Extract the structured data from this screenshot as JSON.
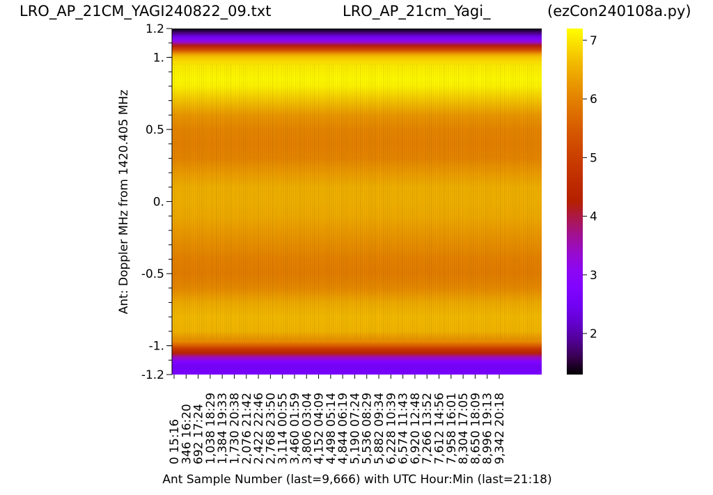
{
  "chart_data": {
    "type": "heatmap",
    "title_left": "LRO_AP_21CM_YAGI240822_09.txt",
    "title_center": "LRO_AP_21cm_Yagi_",
    "title_right": "(ezCon240108a.py)",
    "xlabel": "Ant Sample Number (last=9,666) with UTC Hour:Min (last=21:18)",
    "ylabel": "Ant:  Doppler MHz from 1420.405 MHz",
    "y_tick_labels": [
      "1.2",
      "1.",
      "0.5",
      "0.",
      "-0.5",
      "-1.",
      "-1.2"
    ],
    "y_tick_values": [
      1.2,
      1.0,
      0.5,
      0.0,
      -0.5,
      -1.0,
      -1.2
    ],
    "ylim": [
      -1.2,
      1.2
    ],
    "x_sample_labels": [
      "0",
      "346",
      "692",
      "1,038",
      "1,384",
      "1,730",
      "2,076",
      "2,422",
      "2,768",
      "3,114",
      "3,460",
      "3,806",
      "4,152",
      "4,498",
      "4,844",
      "5,190",
      "5,536",
      "5,882",
      "6,228",
      "6,574",
      "6,920",
      "7,266",
      "7,612",
      "7,958",
      "8,304",
      "8,650",
      "8,996",
      "9,342"
    ],
    "x_time_labels": [
      "15:16",
      "16:20",
      "17:24",
      "18:29",
      "19:33",
      "20:38",
      "21:42",
      "22:46",
      "23:50",
      "00:55",
      "01:59",
      "03:04",
      "04:09",
      "05:14",
      "06:19",
      "07:24",
      "08:29",
      "09:34",
      "10:39",
      "11:43",
      "12:48",
      "13:52",
      "14:56",
      "16:01",
      "17:05",
      "18:09",
      "19:13",
      "20:18"
    ],
    "x_last": 9666,
    "colorbar": {
      "colormap": "gnuplot",
      "ticks": [
        2,
        3,
        4,
        5,
        6,
        7
      ],
      "tick_labels": [
        "2",
        "3",
        "4",
        "5",
        "6",
        "7"
      ],
      "range": [
        1.3,
        7.2
      ]
    },
    "profile": {
      "doppler": [
        1.2,
        1.17,
        1.14,
        1.11,
        1.08,
        1.05,
        1.02,
        1.0,
        0.97,
        0.94,
        0.9,
        0.85,
        0.8,
        0.7,
        0.6,
        0.5,
        0.4,
        0.3,
        0.2,
        0.1,
        0.0,
        -0.1,
        -0.2,
        -0.3,
        -0.4,
        -0.5,
        -0.6,
        -0.7,
        -0.8,
        -0.9,
        -0.97,
        -1.0,
        -1.02,
        -1.05,
        -1.08,
        -1.11,
        -1.14,
        -1.17,
        -1.2
      ],
      "value": [
        1.3,
        1.8,
        2.5,
        3.2,
        4.2,
        5.3,
        6.4,
        6.7,
        6.9,
        7.05,
        7.1,
        7.15,
        7.1,
        6.7,
        6.25,
        6.05,
        6.0,
        6.05,
        6.3,
        6.5,
        6.5,
        6.45,
        6.3,
        6.15,
        6.0,
        5.95,
        6.1,
        6.45,
        6.6,
        6.55,
        6.1,
        5.5,
        4.9,
        4.3,
        3.5,
        2.8,
        2.5,
        2.55,
        2.6
      ]
    },
    "grid": false
  }
}
